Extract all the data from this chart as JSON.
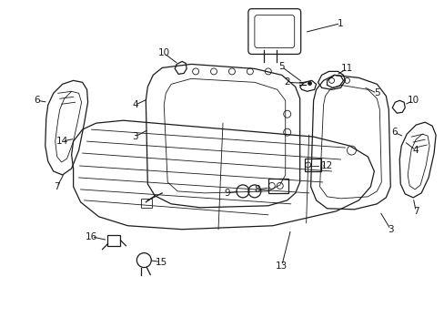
{
  "background_color": "#ffffff",
  "line_color": "#1a1a1a",
  "fig_width": 4.89,
  "fig_height": 3.6,
  "dpi": 100
}
